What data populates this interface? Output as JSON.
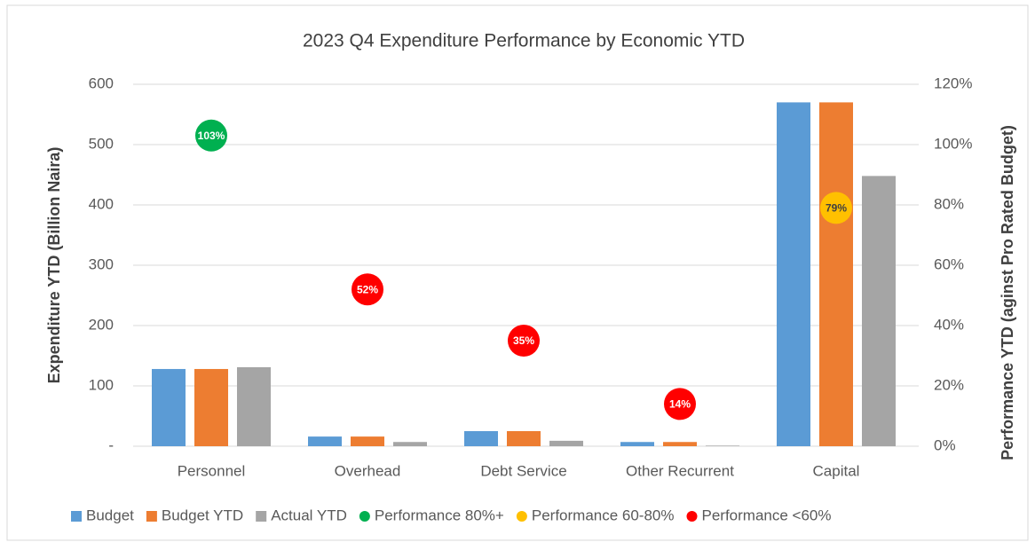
{
  "chart_data": {
    "type": "bar",
    "title": "2023 Q4 Expenditure Performance by Economic YTD",
    "y_label": "Expenditure YTD (Billion Naira)",
    "y2_label": "Performance YTD (aginst Pro Rated Budget)",
    "categories": [
      "Personnel",
      "Overhead",
      "Debt Service",
      "Other Recurrent",
      "Capital"
    ],
    "series": [
      {
        "name": "Budget",
        "type": "bar",
        "color": "#5b9bd5",
        "values": [
          128,
          16,
          25,
          7,
          570
        ]
      },
      {
        "name": "Budget YTD",
        "type": "bar",
        "color": "#ed7d31",
        "values": [
          128,
          16,
          25,
          7,
          570
        ]
      },
      {
        "name": "Actual YTD",
        "type": "bar",
        "color": "#a5a5a5",
        "values": [
          131,
          7,
          9,
          1,
          448
        ]
      },
      {
        "name": "Performance 80%+",
        "type": "scatter",
        "axis": "y2",
        "color": "#00b050",
        "values": [
          103,
          null,
          null,
          null,
          null
        ],
        "value_labels": [
          "103%",
          null,
          null,
          null,
          null
        ]
      },
      {
        "name": "Performance 60-80%",
        "type": "scatter",
        "axis": "y2",
        "color": "#ffc000",
        "values": [
          null,
          null,
          null,
          null,
          79
        ],
        "value_labels": [
          null,
          null,
          null,
          null,
          "79%"
        ]
      },
      {
        "name": "Performance <60%",
        "type": "scatter",
        "axis": "y2",
        "color": "#ff0000",
        "values": [
          null,
          52,
          35,
          14,
          null
        ],
        "value_labels": [
          null,
          "52%",
          "35%",
          "14%",
          null
        ]
      }
    ],
    "ylim": [
      0,
      600
    ],
    "yticks": [
      {
        "value": 0,
        "label": "-"
      },
      100,
      200,
      300,
      400,
      500,
      600
    ],
    "y2lim": [
      0,
      120
    ],
    "y2ticks": [
      {
        "value": 0,
        "label": "0%"
      },
      {
        "value": 20,
        "label": "20%"
      },
      {
        "value": 40,
        "label": "40%"
      },
      {
        "value": 60,
        "label": "60%"
      },
      {
        "value": 80,
        "label": "80%"
      },
      {
        "value": 100,
        "label": "100%"
      },
      {
        "value": 120,
        "label": "120%"
      }
    ],
    "grid": true,
    "legend": "bottom"
  }
}
